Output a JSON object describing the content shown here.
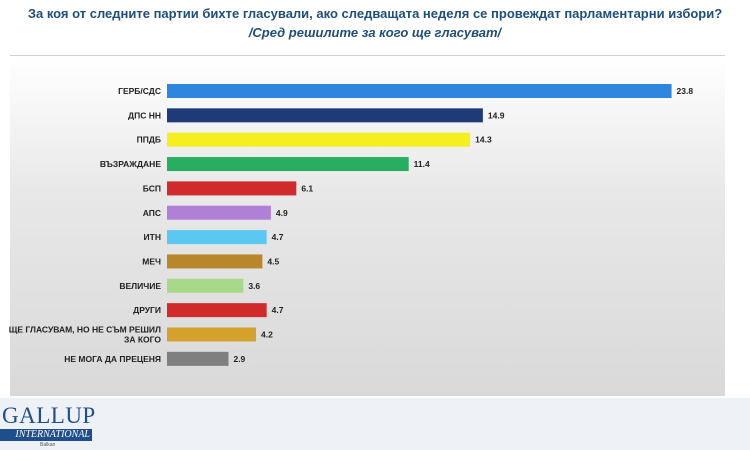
{
  "header": {
    "title": "За коя от следните партии бихте  гласували,  ако следващата неделя се провеждат парламентарни избори?",
    "subtitle": "/Сред решилите за кого ще гласуват/"
  },
  "logo": {
    "main": "GALLUP",
    "sub": "INTERNATIONAL",
    "region": "Balkan"
  },
  "chart_data": {
    "type": "bar",
    "orientation": "horizontal",
    "title": "За коя от следните партии бихте  гласували,  ако следващата неделя се провеждат парламентарни избори?",
    "subtitle": "/Сред решилите за кого ще гласуват/",
    "categories": [
      "ГЕРБ/СДС",
      "ДПС НН",
      "ППДБ",
      "ВЪЗРАЖДАНЕ",
      "БСП",
      "АПС",
      "ИТН",
      "МЕЧ",
      "ВЕЛИЧИЕ",
      "ДРУГИ",
      "ЩЕ ГЛАСУВАМ, НО НЕ СЪМ РЕШИЛ ЗА КОГО",
      "НЕ МОГА ДА ПРЕЦЕНЯ"
    ],
    "category_lines": [
      [
        "ГЕРБ/СДС"
      ],
      [
        "ДПС НН"
      ],
      [
        "ППДБ"
      ],
      [
        "ВЪЗРАЖДАНЕ"
      ],
      [
        "БСП"
      ],
      [
        "АПС"
      ],
      [
        "ИТН"
      ],
      [
        "МЕЧ"
      ],
      [
        "ВЕЛИЧИЕ"
      ],
      [
        "ДРУГИ"
      ],
      [
        "ЩЕ ГЛАСУВАМ, НО НЕ СЪМ РЕШИЛ",
        "ЗА КОГО"
      ],
      [
        "НЕ МОГА ДА ПРЕЦЕНЯ"
      ]
    ],
    "values": [
      23.8,
      14.9,
      14.3,
      11.4,
      6.1,
      4.9,
      4.7,
      4.5,
      3.6,
      4.7,
      4.2,
      2.9
    ],
    "value_labels": [
      "23.8",
      "14.9",
      "14.3",
      "11.4",
      "6.1",
      "4.9",
      "4.7",
      "4.5",
      "3.6",
      "4.7",
      "4.2",
      "2.9"
    ],
    "colors": [
      "#2e86de",
      "#1f3a78",
      "#f5ef1d",
      "#27ae60",
      "#d12a2a",
      "#b07fd6",
      "#5ac8f0",
      "#b8862b",
      "#a8d98a",
      "#d12a2a",
      "#d4a22c",
      "#7f7f7f"
    ],
    "xlim": [
      0,
      25
    ],
    "grid": false,
    "legend": "none"
  }
}
